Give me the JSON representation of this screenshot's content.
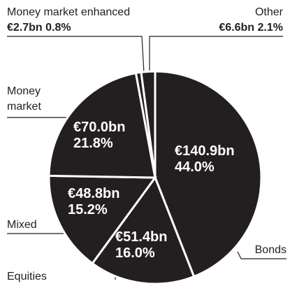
{
  "chart_data": {
    "type": "pie",
    "categories": [
      "Bonds",
      "Equities",
      "Mixed",
      "Money market",
      "Money market enhanced",
      "Other"
    ],
    "values": [
      44.0,
      16.0,
      15.2,
      21.8,
      0.8,
      2.1
    ],
    "value_labels": [
      "44.0%",
      "16.0%",
      "15.2%",
      "21.8%",
      "0.8%",
      "2.1%"
    ],
    "amount_labels": [
      "€140.9bn",
      "€51.4bn",
      "€48.8bn",
      "€70.0bn",
      "€2.7bn",
      "€6.6bn"
    ],
    "color": "#231f20"
  }
}
